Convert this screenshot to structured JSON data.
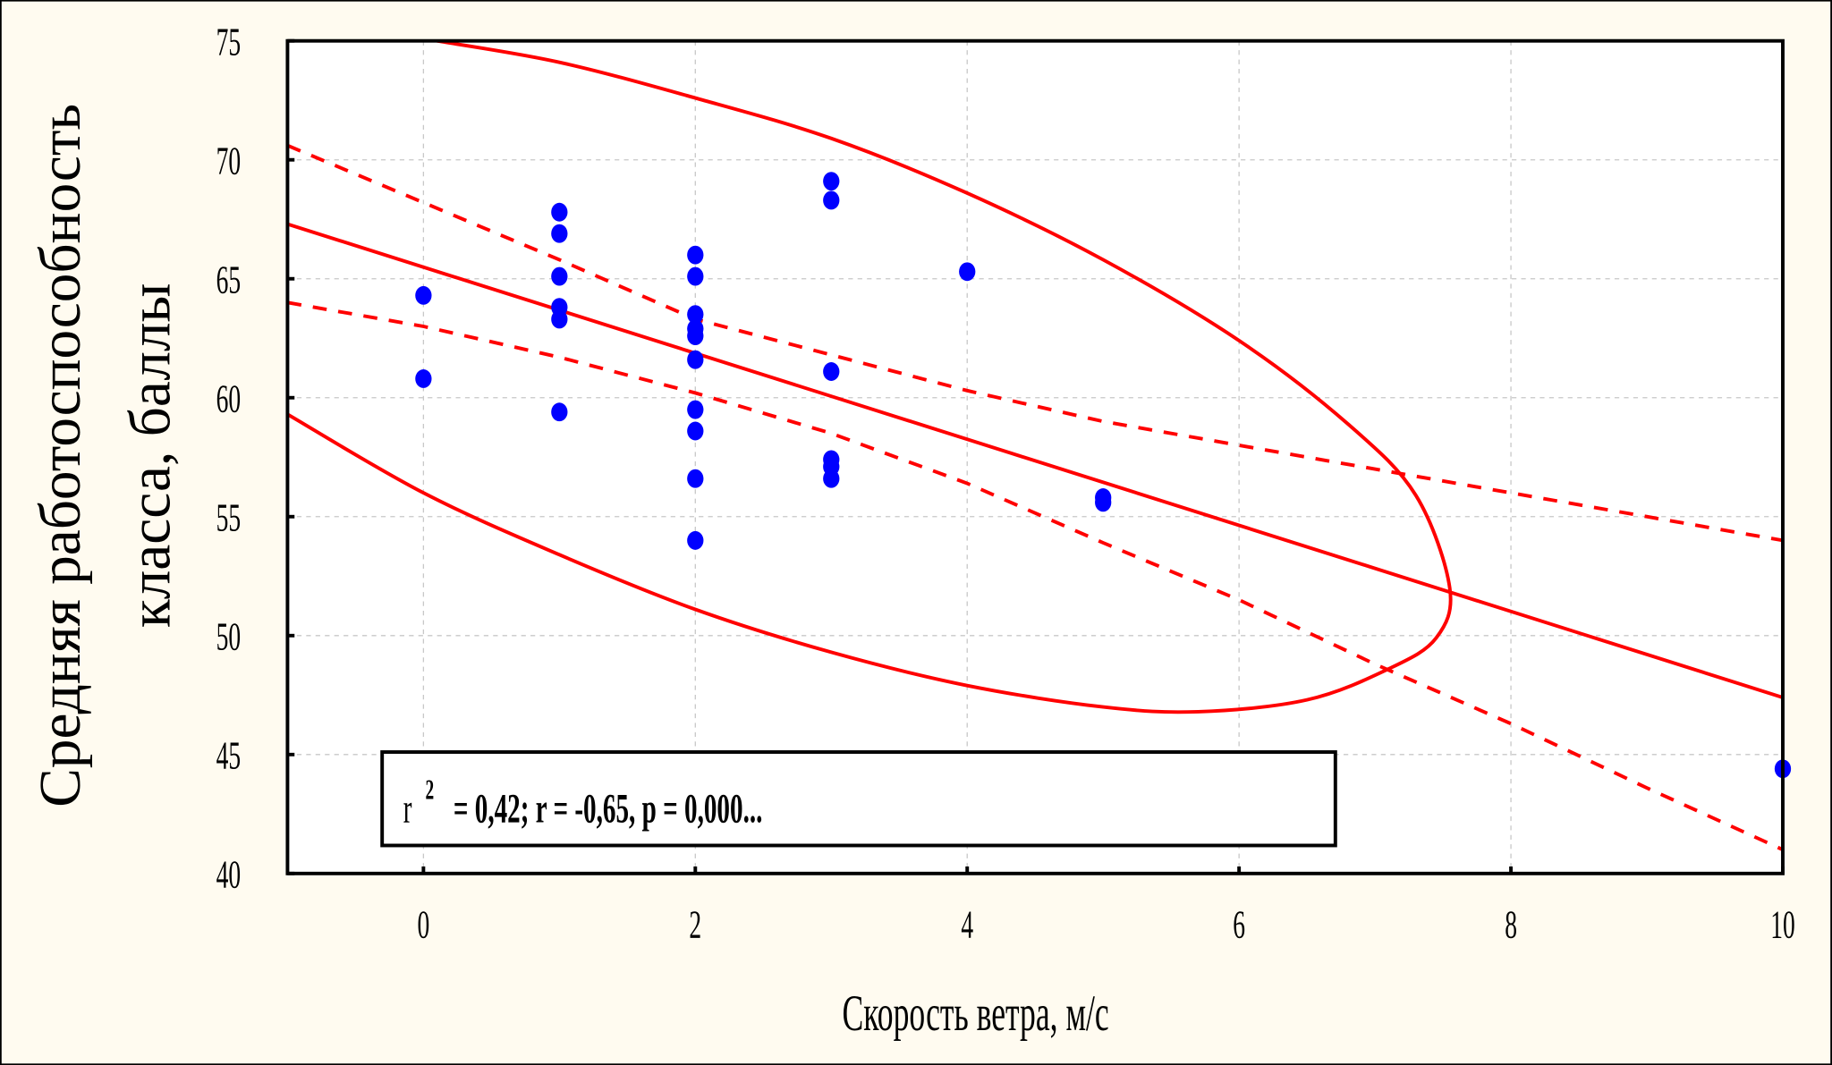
{
  "chart_data": {
    "type": "scatter",
    "title": "",
    "xlabel": "Скорость ветра, м/с",
    "ylabel_line1": "Средняя работоспособность",
    "ylabel_line2": "класса, баллы",
    "xlim": [
      -1,
      10
    ],
    "ylim": [
      40,
      75
    ],
    "xticks": [
      0,
      2,
      4,
      6,
      8,
      10
    ],
    "yticks": [
      40,
      45,
      50,
      55,
      60,
      65,
      70,
      75
    ],
    "grid": true,
    "annotation": {
      "r2_label": "r",
      "r2_sup": "2",
      "text": "= 0,42;  r = -0,65, p = 0,000..."
    },
    "points": [
      [
        0,
        64.3
      ],
      [
        0,
        60.8
      ],
      [
        1,
        67.8
      ],
      [
        1,
        66.9
      ],
      [
        1,
        65.1
      ],
      [
        1,
        63.8
      ],
      [
        1,
        63.3
      ],
      [
        1,
        59.4
      ],
      [
        2,
        66.0
      ],
      [
        2,
        65.1
      ],
      [
        2,
        63.5
      ],
      [
        2,
        62.9
      ],
      [
        2,
        62.6
      ],
      [
        2,
        61.6
      ],
      [
        2,
        59.5
      ],
      [
        2,
        58.6
      ],
      [
        2,
        56.6
      ],
      [
        2,
        54.0
      ],
      [
        3,
        69.1
      ],
      [
        3,
        68.3
      ],
      [
        3,
        61.1
      ],
      [
        3,
        57.4
      ],
      [
        3,
        57.1
      ],
      [
        3,
        56.6
      ],
      [
        4,
        65.3
      ],
      [
        5,
        55.8
      ],
      [
        5,
        55.6
      ],
      [
        10,
        44.4
      ]
    ],
    "regression": {
      "x": [
        -1,
        10
      ],
      "y": [
        67.3,
        47.4
      ]
    },
    "ci_upper": {
      "x": [
        -1,
        0,
        1,
        2,
        3,
        4,
        5,
        6,
        7,
        8,
        9,
        10
      ],
      "y": [
        70.6,
        68.2,
        65.8,
        63.3,
        61.8,
        60.3,
        59.0,
        58.0,
        57.0,
        56.0,
        55.0,
        54.0
      ]
    },
    "ci_lower": {
      "x": [
        -1,
        0,
        1,
        2,
        3,
        4,
        5,
        6,
        7,
        8,
        9,
        10
      ],
      "y": [
        64.0,
        63.0,
        61.7,
        60.2,
        58.5,
        56.4,
        53.9,
        51.5,
        48.8,
        46.3,
        43.6,
        41.0
      ]
    },
    "ellipse": {
      "x": [
        0.1,
        1,
        2,
        3,
        4,
        5,
        6,
        6.8,
        7.3,
        7.55,
        7.45,
        7.1,
        6.5,
        5.7,
        5,
        4,
        3,
        2,
        1,
        0,
        -1
      ],
      "y": [
        75,
        74.1,
        72.6,
        70.9,
        68.6,
        65.8,
        62.4,
        58.9,
        55.9,
        52.0,
        49.9,
        48.6,
        47.3,
        46.8,
        47.0,
        47.9,
        49.3,
        51.1,
        53.4,
        56.0,
        59.3
      ]
    },
    "colors": {
      "points": "#0000ff",
      "lines": "#ff0000",
      "background": "#fffbf0",
      "plot_bg": "#ffffff"
    }
  }
}
